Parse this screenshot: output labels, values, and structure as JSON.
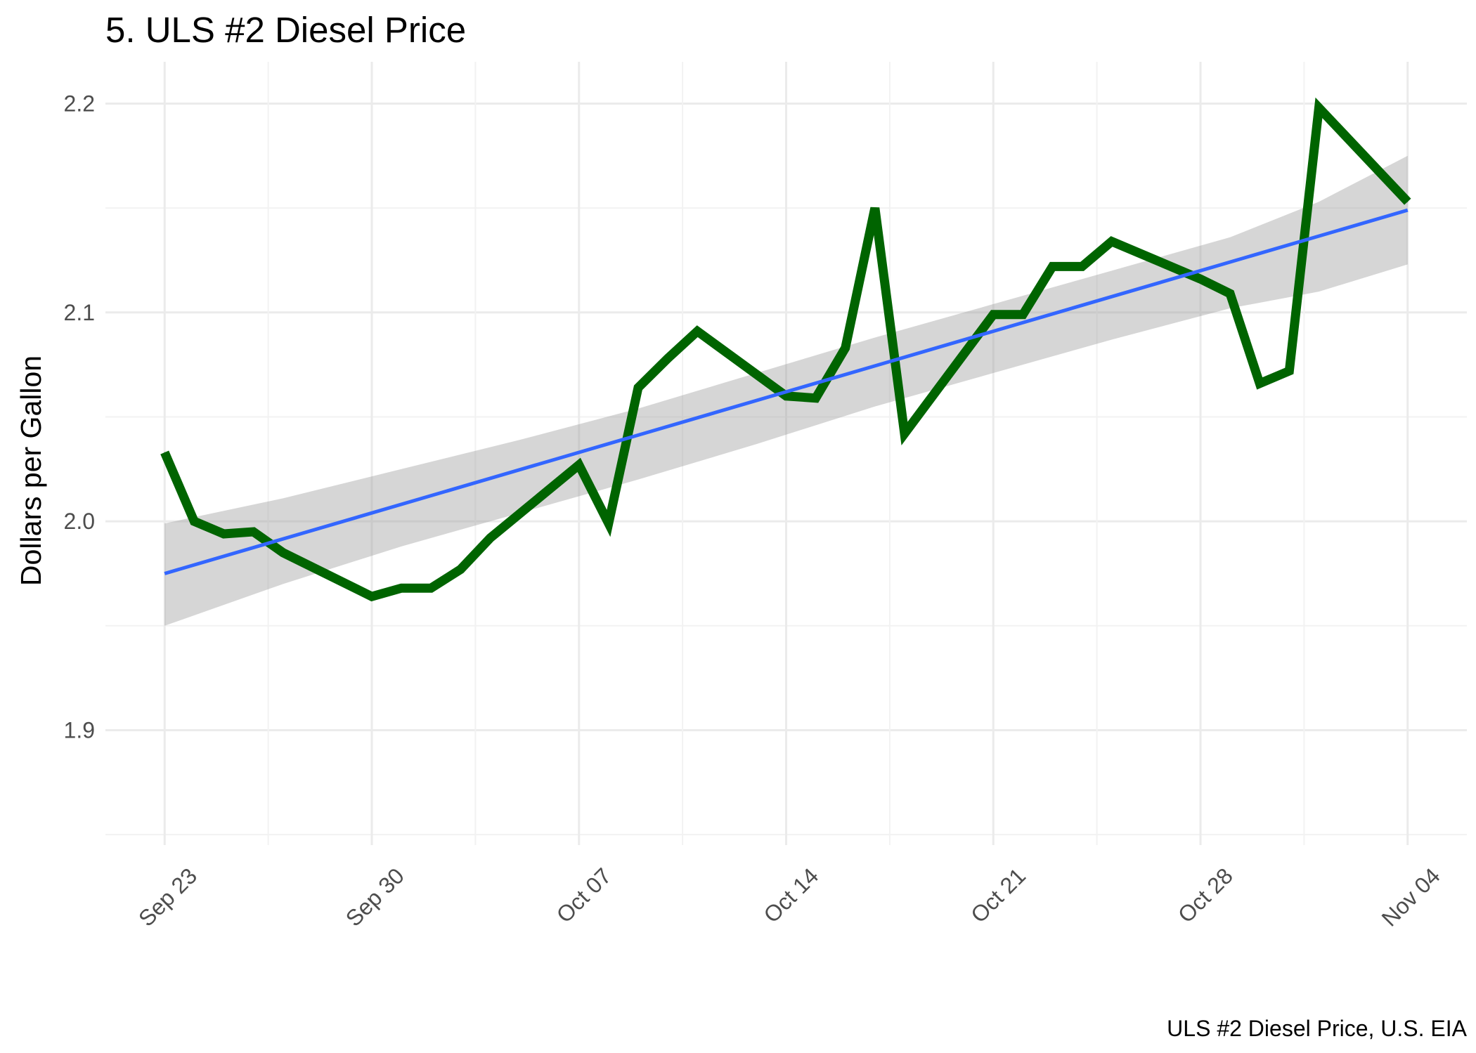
{
  "chart_data": {
    "type": "line",
    "title": "5. ULS #2 Diesel Price",
    "xlabel": "",
    "ylabel": "Dollars per Gallon",
    "caption": "ULS #2 Diesel Price, U.S. EIA",
    "x_ticks": [
      {
        "date": "2019-09-23",
        "label": "Sep 23"
      },
      {
        "date": "2019-09-30",
        "label": "Sep 30"
      },
      {
        "date": "2019-10-07",
        "label": "Oct 07"
      },
      {
        "date": "2019-10-14",
        "label": "Oct 14"
      },
      {
        "date": "2019-10-21",
        "label": "Oct 21"
      },
      {
        "date": "2019-10-28",
        "label": "Oct 28"
      },
      {
        "date": "2019-11-04",
        "label": "Nov 04"
      }
    ],
    "y_ticks": [
      1.9,
      2.0,
      2.1,
      2.2
    ],
    "xlim": [
      "2019-09-21",
      "2019-11-06"
    ],
    "ylim": [
      1.845,
      2.22
    ],
    "grid": true,
    "legend": "none",
    "series": [
      {
        "color": "#006400",
        "points": [
          {
            "x": "2019-09-23",
            "y": 2.033
          },
          {
            "x": "2019-09-24",
            "y": 2.0
          },
          {
            "x": "2019-09-25",
            "y": 1.994
          },
          {
            "x": "2019-09-26",
            "y": 1.995
          },
          {
            "x": "2019-09-27",
            "y": 1.985
          },
          {
            "x": "2019-09-30",
            "y": 1.964
          },
          {
            "x": "2019-10-01",
            "y": 1.968
          },
          {
            "x": "2019-10-02",
            "y": 1.968
          },
          {
            "x": "2019-10-03",
            "y": 1.977
          },
          {
            "x": "2019-10-04",
            "y": 1.992
          },
          {
            "x": "2019-10-07",
            "y": 2.027
          },
          {
            "x": "2019-10-08",
            "y": 1.999
          },
          {
            "x": "2019-10-09",
            "y": 2.064
          },
          {
            "x": "2019-10-10",
            "y": 2.078
          },
          {
            "x": "2019-10-11",
            "y": 2.091
          },
          {
            "x": "2019-10-14",
            "y": 2.06
          },
          {
            "x": "2019-10-15",
            "y": 2.059
          },
          {
            "x": "2019-10-16",
            "y": 2.083
          },
          {
            "x": "2019-10-17",
            "y": 2.15
          },
          {
            "x": "2019-10-18",
            "y": 2.042
          },
          {
            "x": "2019-10-21",
            "y": 2.099
          },
          {
            "x": "2019-10-22",
            "y": 2.099
          },
          {
            "x": "2019-10-23",
            "y": 2.122
          },
          {
            "x": "2019-10-24",
            "y": 2.122
          },
          {
            "x": "2019-10-25",
            "y": 2.134
          },
          {
            "x": "2019-10-28",
            "y": 2.116
          },
          {
            "x": "2019-10-29",
            "y": 2.109
          },
          {
            "x": "2019-10-30",
            "y": 2.066
          },
          {
            "x": "2019-10-31",
            "y": 2.072
          },
          {
            "x": "2019-11-01",
            "y": 2.198
          },
          {
            "x": "2019-11-04",
            "y": 2.153
          }
        ]
      }
    ],
    "trend": {
      "color": "#3366ff",
      "band_color": "#999999",
      "line": [
        {
          "x": "2019-09-23",
          "y": 1.975
        },
        {
          "x": "2019-11-04",
          "y": 2.149
        }
      ],
      "band_upper": [
        {
          "x": "2019-09-23",
          "y": 1.999
        },
        {
          "x": "2019-09-27",
          "y": 2.011
        },
        {
          "x": "2019-10-01",
          "y": 2.025
        },
        {
          "x": "2019-10-05",
          "y": 2.039
        },
        {
          "x": "2019-10-09",
          "y": 2.054
        },
        {
          "x": "2019-10-13",
          "y": 2.071
        },
        {
          "x": "2019-10-17",
          "y": 2.088
        },
        {
          "x": "2019-10-21",
          "y": 2.104
        },
        {
          "x": "2019-10-25",
          "y": 2.12
        },
        {
          "x": "2019-10-29",
          "y": 2.136
        },
        {
          "x": "2019-11-01",
          "y": 2.153
        },
        {
          "x": "2019-11-04",
          "y": 2.175
        }
      ],
      "band_lower": [
        {
          "x": "2019-09-23",
          "y": 1.95
        },
        {
          "x": "2019-09-27",
          "y": 1.97
        },
        {
          "x": "2019-10-01",
          "y": 1.988
        },
        {
          "x": "2019-10-05",
          "y": 2.004
        },
        {
          "x": "2019-10-09",
          "y": 2.02
        },
        {
          "x": "2019-10-13",
          "y": 2.037
        },
        {
          "x": "2019-10-17",
          "y": 2.055
        },
        {
          "x": "2019-10-21",
          "y": 2.071
        },
        {
          "x": "2019-10-25",
          "y": 2.087
        },
        {
          "x": "2019-10-29",
          "y": 2.102
        },
        {
          "x": "2019-11-01",
          "y": 2.11
        },
        {
          "x": "2019-11-04",
          "y": 2.123
        }
      ]
    }
  }
}
